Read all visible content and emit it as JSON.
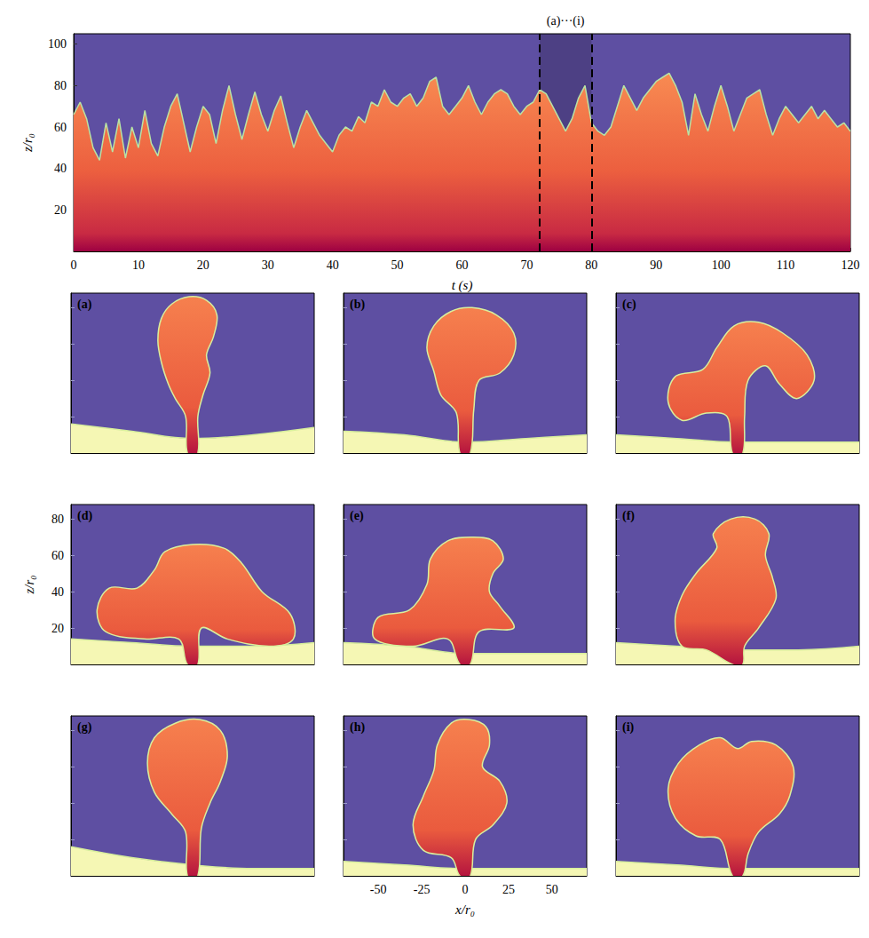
{
  "chart_data": [
    {
      "type": "area",
      "annotation": {
        "text": "(a)···(i)",
        "x": [
          72,
          80
        ]
      },
      "xlabel": "t (s)",
      "ylabel": "z/r₀",
      "xlim": [
        0,
        120
      ],
      "ylim": [
        0,
        105
      ],
      "xticks": [
        0,
        10,
        20,
        30,
        40,
        50,
        60,
        70,
        80,
        90,
        100,
        110,
        120
      ],
      "yticks": [
        20,
        40,
        60,
        80,
        100
      ],
      "x": [
        0,
        1,
        2,
        3,
        4,
        5,
        6,
        7,
        8,
        9,
        10,
        11,
        12,
        13,
        14,
        15,
        16,
        17,
        18,
        19,
        20,
        21,
        22,
        23,
        24,
        25,
        26,
        27,
        28,
        29,
        30,
        31,
        32,
        33,
        34,
        35,
        36,
        37,
        38,
        39,
        40,
        41,
        42,
        43,
        44,
        45,
        46,
        47,
        48,
        49,
        50,
        51,
        52,
        53,
        54,
        55,
        56,
        57,
        58,
        59,
        60,
        61,
        62,
        63,
        64,
        65,
        66,
        67,
        68,
        69,
        70,
        71,
        72,
        73,
        74,
        75,
        76,
        77,
        78,
        79,
        80,
        81,
        82,
        83,
        84,
        85,
        86,
        87,
        88,
        89,
        90,
        91,
        92,
        93,
        94,
        95,
        96,
        97,
        98,
        99,
        100,
        101,
        102,
        103,
        104,
        105,
        106,
        107,
        108,
        109,
        110,
        111,
        112,
        113,
        114,
        115,
        116,
        117,
        118,
        119,
        120
      ],
      "values": [
        66,
        72,
        64,
        50,
        44,
        62,
        48,
        64,
        45,
        60,
        50,
        68,
        52,
        46,
        60,
        70,
        76,
        62,
        48,
        60,
        70,
        66,
        52,
        68,
        80,
        66,
        54,
        66,
        77,
        66,
        58,
        68,
        75,
        62,
        50,
        60,
        68,
        62,
        56,
        52,
        48,
        56,
        60,
        58,
        65,
        62,
        72,
        70,
        78,
        72,
        70,
        74,
        76,
        70,
        74,
        82,
        84,
        70,
        66,
        70,
        74,
        80,
        72,
        66,
        72,
        76,
        78,
        76,
        70,
        66,
        70,
        72,
        78,
        76,
        70,
        64,
        58,
        64,
        74,
        80,
        62,
        58,
        56,
        60,
        70,
        80,
        74,
        68,
        74,
        78,
        82,
        84,
        86,
        80,
        72,
        56,
        76,
        66,
        58,
        70,
        80,
        70,
        58,
        66,
        74,
        76,
        78,
        66,
        56,
        64,
        70,
        66,
        62,
        66,
        70,
        64,
        68,
        64,
        60,
        62,
        58
      ]
    },
    {
      "type": "image_panels",
      "xlim": [
        -70,
        70
      ],
      "ylim": [
        0,
        88
      ],
      "xticks": [
        -50,
        -25,
        0,
        25,
        50
      ],
      "yticks": [
        20,
        40,
        60,
        80
      ],
      "ground_x": [
        -70,
        -35,
        0,
        35,
        70
      ],
      "panels": [
        {
          "label": "(a)",
          "tick_labels": false,
          "ground": [
            16,
            12,
            8,
            10,
            14
          ],
          "outline": [
            [
              -3,
              0
            ],
            [
              -4,
              20
            ],
            [
              -10,
              30
            ],
            [
              -14,
              38
            ],
            [
              -18,
              50
            ],
            [
              -20,
              62
            ],
            [
              -18,
              74
            ],
            [
              -12,
              82
            ],
            [
              -2,
              86
            ],
            [
              8,
              84
            ],
            [
              14,
              76
            ],
            [
              12,
              64
            ],
            [
              8,
              54
            ],
            [
              10,
              44
            ],
            [
              6,
              32
            ],
            [
              3,
              20
            ],
            [
              3,
              0
            ]
          ]
        },
        {
          "label": "(b)",
          "tick_labels": false,
          "ground": [
            12,
            10,
            6,
            8,
            10
          ],
          "outline": [
            [
              -3,
              0
            ],
            [
              -5,
              22
            ],
            [
              -14,
              32
            ],
            [
              -18,
              45
            ],
            [
              -22,
              58
            ],
            [
              -18,
              70
            ],
            [
              -8,
              78
            ],
            [
              4,
              80
            ],
            [
              18,
              76
            ],
            [
              28,
              66
            ],
            [
              28,
              54
            ],
            [
              20,
              44
            ],
            [
              8,
              40
            ],
            [
              5,
              24
            ],
            [
              3,
              0
            ]
          ]
        },
        {
          "label": "(c)",
          "tick_labels": false,
          "ground": [
            10,
            8,
            6,
            6,
            6
          ],
          "outline": [
            [
              -3,
              0
            ],
            [
              -6,
              20
            ],
            [
              -18,
              22
            ],
            [
              -32,
              18
            ],
            [
              -40,
              28
            ],
            [
              -36,
              42
            ],
            [
              -20,
              46
            ],
            [
              -12,
              58
            ],
            [
              -2,
              70
            ],
            [
              12,
              72
            ],
            [
              26,
              66
            ],
            [
              40,
              54
            ],
            [
              44,
              40
            ],
            [
              34,
              30
            ],
            [
              24,
              38
            ],
            [
              16,
              48
            ],
            [
              6,
              40
            ],
            [
              4,
              20
            ],
            [
              3,
              0
            ]
          ]
        },
        {
          "label": "(d)",
          "tick_labels": "y",
          "ylabel": "z/r₀",
          "ground": [
            14,
            12,
            10,
            10,
            12
          ],
          "outline": [
            [
              -3,
              0
            ],
            [
              -8,
              14
            ],
            [
              -28,
              14
            ],
            [
              -50,
              18
            ],
            [
              -55,
              30
            ],
            [
              -48,
              42
            ],
            [
              -32,
              42
            ],
            [
              -22,
              52
            ],
            [
              -16,
              62
            ],
            [
              0,
              66
            ],
            [
              18,
              64
            ],
            [
              28,
              56
            ],
            [
              40,
              40
            ],
            [
              56,
              28
            ],
            [
              58,
              14
            ],
            [
              44,
              10
            ],
            [
              20,
              14
            ],
            [
              5,
              20
            ],
            [
              3,
              0
            ]
          ]
        },
        {
          "label": "(e)",
          "tick_labels": false,
          "ground": [
            12,
            10,
            6,
            6,
            6
          ],
          "outline": [
            [
              -3,
              0
            ],
            [
              -10,
              14
            ],
            [
              -30,
              10
            ],
            [
              -52,
              14
            ],
            [
              -50,
              26
            ],
            [
              -32,
              30
            ],
            [
              -22,
              44
            ],
            [
              -20,
              58
            ],
            [
              -10,
              68
            ],
            [
              4,
              70
            ],
            [
              16,
              68
            ],
            [
              22,
              58
            ],
            [
              16,
              50
            ],
            [
              14,
              40
            ],
            [
              20,
              32
            ],
            [
              28,
              20
            ],
            [
              8,
              18
            ],
            [
              3,
              0
            ]
          ]
        },
        {
          "label": "(f)",
          "tick_labels": false,
          "ground": [
            12,
            10,
            8,
            8,
            10
          ],
          "outline": [
            [
              -3,
              0
            ],
            [
              -18,
              8
            ],
            [
              -32,
              10
            ],
            [
              -36,
              24
            ],
            [
              -32,
              38
            ],
            [
              -24,
              50
            ],
            [
              -12,
              64
            ],
            [
              -14,
              72
            ],
            [
              -4,
              80
            ],
            [
              10,
              80
            ],
            [
              18,
              72
            ],
            [
              16,
              60
            ],
            [
              20,
              48
            ],
            [
              22,
              36
            ],
            [
              12,
              20
            ],
            [
              4,
              10
            ],
            [
              3,
              0
            ]
          ]
        },
        {
          "label": "(g)",
          "tick_labels": false,
          "ground": [
            16,
            10,
            6,
            4,
            4
          ],
          "outline": [
            [
              -3,
              0
            ],
            [
              -4,
              24
            ],
            [
              -12,
              34
            ],
            [
              -22,
              46
            ],
            [
              -26,
              62
            ],
            [
              -22,
              76
            ],
            [
              -10,
              84
            ],
            [
              4,
              86
            ],
            [
              16,
              80
            ],
            [
              20,
              66
            ],
            [
              16,
              52
            ],
            [
              10,
              40
            ],
            [
              5,
              26
            ],
            [
              3,
              0
            ]
          ]
        },
        {
          "label": "(h)",
          "tick_labels": "x",
          "xlabel": "x/r₀",
          "ground": [
            8,
            6,
            4,
            4,
            4
          ],
          "outline": [
            [
              -3,
              0
            ],
            [
              -8,
              10
            ],
            [
              -24,
              14
            ],
            [
              -30,
              28
            ],
            [
              -24,
              44
            ],
            [
              -18,
              58
            ],
            [
              -16,
              72
            ],
            [
              -8,
              84
            ],
            [
              2,
              86
            ],
            [
              12,
              82
            ],
            [
              14,
              72
            ],
            [
              10,
              60
            ],
            [
              20,
              52
            ],
            [
              24,
              40
            ],
            [
              16,
              28
            ],
            [
              6,
              20
            ],
            [
              3,
              0
            ]
          ]
        },
        {
          "label": "(i)",
          "tick_labels": false,
          "ground": [
            8,
            6,
            4,
            4,
            4
          ],
          "outline": [
            [
              -3,
              0
            ],
            [
              -10,
              20
            ],
            [
              -24,
              22
            ],
            [
              -36,
              32
            ],
            [
              -40,
              48
            ],
            [
              -34,
              62
            ],
            [
              -22,
              72
            ],
            [
              -10,
              76
            ],
            [
              0,
              70
            ],
            [
              8,
              74
            ],
            [
              22,
              72
            ],
            [
              32,
              60
            ],
            [
              30,
              44
            ],
            [
              24,
              34
            ],
            [
              12,
              24
            ],
            [
              6,
              12
            ],
            [
              3,
              0
            ]
          ]
        }
      ]
    }
  ]
}
